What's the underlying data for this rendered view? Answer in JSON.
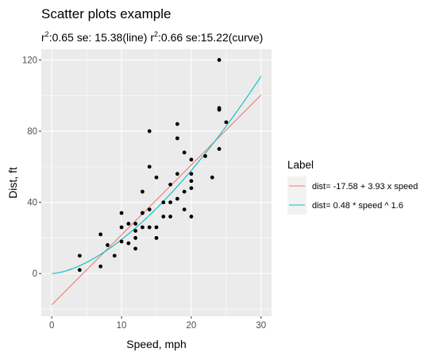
{
  "chart_data": {
    "type": "scatter",
    "title": "Scatter plots example",
    "subtitle": {
      "line_r2_label": "r",
      "line_r2_sup": "2",
      "line_rest": ":0.65 se: 15.38(line) ",
      "curve_r2_label": "r",
      "curve_r2_sup": "2",
      "curve_rest": ":0.66 se:15.22(curve)"
    },
    "xlabel": "Speed, mph",
    "ylabel": "Dist, ft",
    "xlim": [
      -1.5,
      31.5
    ],
    "ylim": [
      -24,
      126
    ],
    "xticks": [
      0,
      10,
      20,
      30
    ],
    "xtick_labels": [
      "0",
      "10",
      "20",
      "30"
    ],
    "yticks": [
      0,
      40,
      80,
      120
    ],
    "ytick_labels": [
      "0",
      "40",
      "80",
      "120"
    ],
    "grid": true,
    "legend_position": "right",
    "legend_title": "Label",
    "points": {
      "x": [
        4,
        4,
        7,
        7,
        8,
        9,
        10,
        10,
        10,
        11,
        11,
        12,
        12,
        12,
        12,
        13,
        13,
        13,
        13,
        14,
        14,
        14,
        14,
        15,
        15,
        15,
        16,
        16,
        17,
        17,
        17,
        18,
        18,
        18,
        18,
        19,
        19,
        19,
        20,
        20,
        20,
        20,
        20,
        22,
        23,
        24,
        24,
        24,
        24,
        25
      ],
      "y": [
        2,
        10,
        4,
        22,
        16,
        10,
        18,
        26,
        34,
        17,
        28,
        14,
        20,
        24,
        28,
        26,
        34,
        34,
        46,
        26,
        36,
        60,
        80,
        20,
        26,
        54,
        32,
        40,
        32,
        40,
        50,
        42,
        56,
        76,
        84,
        36,
        46,
        68,
        32,
        48,
        52,
        56,
        64,
        66,
        54,
        70,
        92,
        93,
        120,
        85
      ],
      "color": "#000000"
    },
    "series": [
      {
        "name": "dist= -17.58  +  3.93 x speed",
        "kind": "line",
        "intercept": -17.58,
        "slope": 3.93,
        "x_range": [
          0,
          30
        ],
        "color": "#F8766D"
      },
      {
        "name": "dist= 0.48  * speed ^ 1.6",
        "kind": "power",
        "coef": 0.48,
        "exponent": 1.6,
        "x_range": [
          0,
          30
        ],
        "color": "#00BFC4"
      }
    ]
  }
}
